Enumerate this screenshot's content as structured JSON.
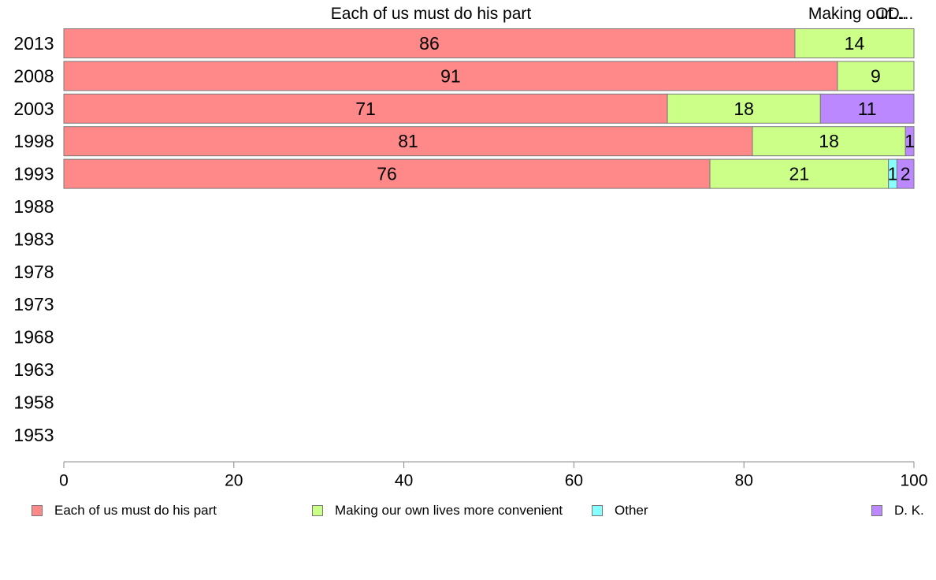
{
  "chart_data": {
    "type": "bar",
    "orientation": "horizontal",
    "stacked": true,
    "categories": [
      "2013",
      "2008",
      "2003",
      "1998",
      "1993",
      "1988",
      "1983",
      "1978",
      "1973",
      "1968",
      "1963",
      "1958",
      "1953"
    ],
    "series": [
      {
        "name": "Each of us must do his part",
        "color": "#ff8888",
        "values": [
          86,
          91,
          71,
          81,
          76,
          null,
          null,
          null,
          null,
          null,
          null,
          null,
          null
        ]
      },
      {
        "name": "Making our own lives more convenient",
        "color": "#ccff88",
        "values": [
          14,
          9,
          18,
          18,
          21,
          null,
          null,
          null,
          null,
          null,
          null,
          null,
          null
        ]
      },
      {
        "name": "Other",
        "color": "#88ffff",
        "values": [
          0,
          0,
          0,
          0,
          1,
          null,
          null,
          null,
          null,
          null,
          null,
          null,
          null
        ]
      },
      {
        "name": "D. K.",
        "color": "#bb88ff",
        "values": [
          0,
          0,
          11,
          1,
          2,
          null,
          null,
          null,
          null,
          null,
          null,
          null,
          null
        ]
      }
    ],
    "xlim": [
      0,
      100
    ],
    "xticks": [
      "0",
      "20",
      "40",
      "60",
      "80",
      "100"
    ],
    "column_headers": [
      "Each of us must do his part",
      "Making our own lives more convenient",
      "Other",
      "D. K."
    ],
    "column_header_texts": [
      "Each of us must do his part",
      "Making our...",
      "Ot...",
      "D..."
    ],
    "grid": false,
    "legend_position": "bottom"
  }
}
